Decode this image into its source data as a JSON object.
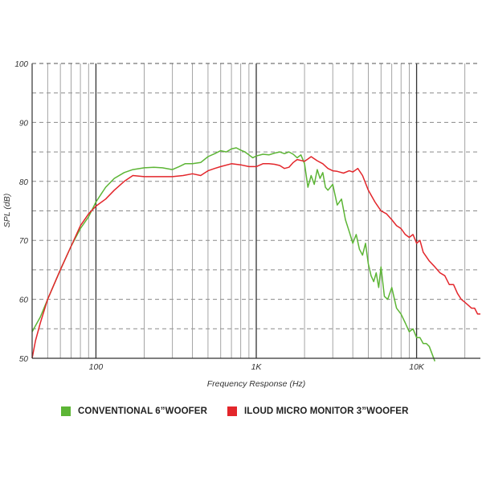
{
  "chart_data": {
    "type": "line",
    "xscale": "log",
    "xlim": [
      40,
      25000
    ],
    "ylim": [
      50,
      100
    ],
    "xlabel": "Frequency Response (Hz)",
    "ylabel": "SPL (dB)",
    "yticks": [
      50,
      60,
      70,
      80,
      90,
      100
    ],
    "xtick_labels": [
      {
        "value": 100,
        "label": "100"
      },
      {
        "value": 1000,
        "label": "1K"
      },
      {
        "value": 10000,
        "label": "10K"
      }
    ],
    "grid": true,
    "legend_position": "bottom",
    "series": [
      {
        "name": "CONVENTIONAL 6”WOOFER",
        "color": "#5cb535",
        "points": [
          [
            40,
            54.5
          ],
          [
            45,
            57
          ],
          [
            50,
            60
          ],
          [
            60,
            65
          ],
          [
            70,
            69
          ],
          [
            80,
            72
          ],
          [
            90,
            74
          ],
          [
            100,
            76.5
          ],
          [
            115,
            79
          ],
          [
            130,
            80.5
          ],
          [
            150,
            81.5
          ],
          [
            170,
            82
          ],
          [
            200,
            82.3
          ],
          [
            230,
            82.4
          ],
          [
            260,
            82.3
          ],
          [
            300,
            82
          ],
          [
            330,
            82.5
          ],
          [
            360,
            83
          ],
          [
            400,
            83
          ],
          [
            450,
            83.2
          ],
          [
            500,
            84.2
          ],
          [
            550,
            84.7
          ],
          [
            600,
            85.2
          ],
          [
            650,
            85
          ],
          [
            700,
            85.5
          ],
          [
            750,
            85.7
          ],
          [
            800,
            85.3
          ],
          [
            850,
            85
          ],
          [
            900,
            84.5
          ],
          [
            950,
            84
          ],
          [
            1000,
            84.3
          ],
          [
            1100,
            84.6
          ],
          [
            1200,
            84.5
          ],
          [
            1300,
            84.8
          ],
          [
            1400,
            85
          ],
          [
            1500,
            84.7
          ],
          [
            1600,
            85
          ],
          [
            1700,
            84.6
          ],
          [
            1800,
            84
          ],
          [
            1900,
            84.5
          ],
          [
            2000,
            83
          ],
          [
            2100,
            79
          ],
          [
            2200,
            81
          ],
          [
            2300,
            79.5
          ],
          [
            2400,
            82
          ],
          [
            2500,
            80.5
          ],
          [
            2600,
            81.5
          ],
          [
            2700,
            79
          ],
          [
            2800,
            78.5
          ],
          [
            3000,
            79.5
          ],
          [
            3200,
            76
          ],
          [
            3400,
            77
          ],
          [
            3600,
            73.5
          ],
          [
            3800,
            71.5
          ],
          [
            4000,
            69.5
          ],
          [
            4200,
            71
          ],
          [
            4400,
            68.5
          ],
          [
            4600,
            67.5
          ],
          [
            4800,
            69.5
          ],
          [
            5000,
            66
          ],
          [
            5200,
            64
          ],
          [
            5400,
            63
          ],
          [
            5600,
            64.5
          ],
          [
            5800,
            62
          ],
          [
            6000,
            65.5
          ],
          [
            6300,
            60.5
          ],
          [
            6600,
            60
          ],
          [
            7000,
            62
          ],
          [
            7500,
            58.5
          ],
          [
            8000,
            57.5
          ],
          [
            8500,
            56
          ],
          [
            9000,
            54.5
          ],
          [
            9500,
            55
          ],
          [
            10000,
            53.5
          ],
          [
            10500,
            53.5
          ],
          [
            11000,
            52.5
          ],
          [
            11500,
            52.5
          ],
          [
            12000,
            52
          ],
          [
            13000,
            49.5
          ]
        ]
      },
      {
        "name": "ILOUD MICRO MONITOR 3”WOOFER",
        "color": "#e3262b",
        "points": [
          [
            40,
            50
          ],
          [
            42,
            53
          ],
          [
            45,
            56
          ],
          [
            50,
            60
          ],
          [
            60,
            65
          ],
          [
            70,
            69
          ],
          [
            80,
            72.5
          ],
          [
            90,
            74.5
          ],
          [
            100,
            75.8
          ],
          [
            115,
            77
          ],
          [
            130,
            78.5
          ],
          [
            150,
            80
          ],
          [
            170,
            81
          ],
          [
            200,
            80.8
          ],
          [
            250,
            80.8
          ],
          [
            300,
            80.8
          ],
          [
            350,
            81
          ],
          [
            400,
            81.3
          ],
          [
            450,
            81
          ],
          [
            500,
            81.8
          ],
          [
            550,
            82.2
          ],
          [
            600,
            82.5
          ],
          [
            700,
            83
          ],
          [
            800,
            82.8
          ],
          [
            900,
            82.5
          ],
          [
            1000,
            82.5
          ],
          [
            1100,
            83
          ],
          [
            1200,
            83
          ],
          [
            1300,
            82.9
          ],
          [
            1400,
            82.7
          ],
          [
            1500,
            82.2
          ],
          [
            1600,
            82.4
          ],
          [
            1700,
            83.2
          ],
          [
            1800,
            83.7
          ],
          [
            2000,
            83.4
          ],
          [
            2100,
            83.8
          ],
          [
            2200,
            84.2
          ],
          [
            2400,
            83.5
          ],
          [
            2600,
            83
          ],
          [
            2800,
            82.2
          ],
          [
            3000,
            81.8
          ],
          [
            3200,
            81.7
          ],
          [
            3500,
            81.4
          ],
          [
            3800,
            81.8
          ],
          [
            4000,
            81.6
          ],
          [
            4300,
            82.2
          ],
          [
            4600,
            81
          ],
          [
            5000,
            78.5
          ],
          [
            5500,
            76.5
          ],
          [
            6000,
            75
          ],
          [
            6500,
            74.5
          ],
          [
            7000,
            73.5
          ],
          [
            7500,
            72.5
          ],
          [
            8000,
            72
          ],
          [
            8500,
            71
          ],
          [
            9000,
            70.5
          ],
          [
            9500,
            71
          ],
          [
            10000,
            69.5
          ],
          [
            10500,
            70
          ],
          [
            11000,
            68
          ],
          [
            12000,
            66.5
          ],
          [
            13000,
            65.5
          ],
          [
            14000,
            64.5
          ],
          [
            15000,
            64
          ],
          [
            16000,
            62.5
          ],
          [
            17000,
            62.5
          ],
          [
            18000,
            61
          ],
          [
            19000,
            60
          ],
          [
            20000,
            59.5
          ],
          [
            21000,
            59
          ],
          [
            22000,
            58.5
          ],
          [
            23000,
            58.5
          ],
          [
            24000,
            57.5
          ],
          [
            25000,
            57.5
          ]
        ]
      }
    ]
  }
}
